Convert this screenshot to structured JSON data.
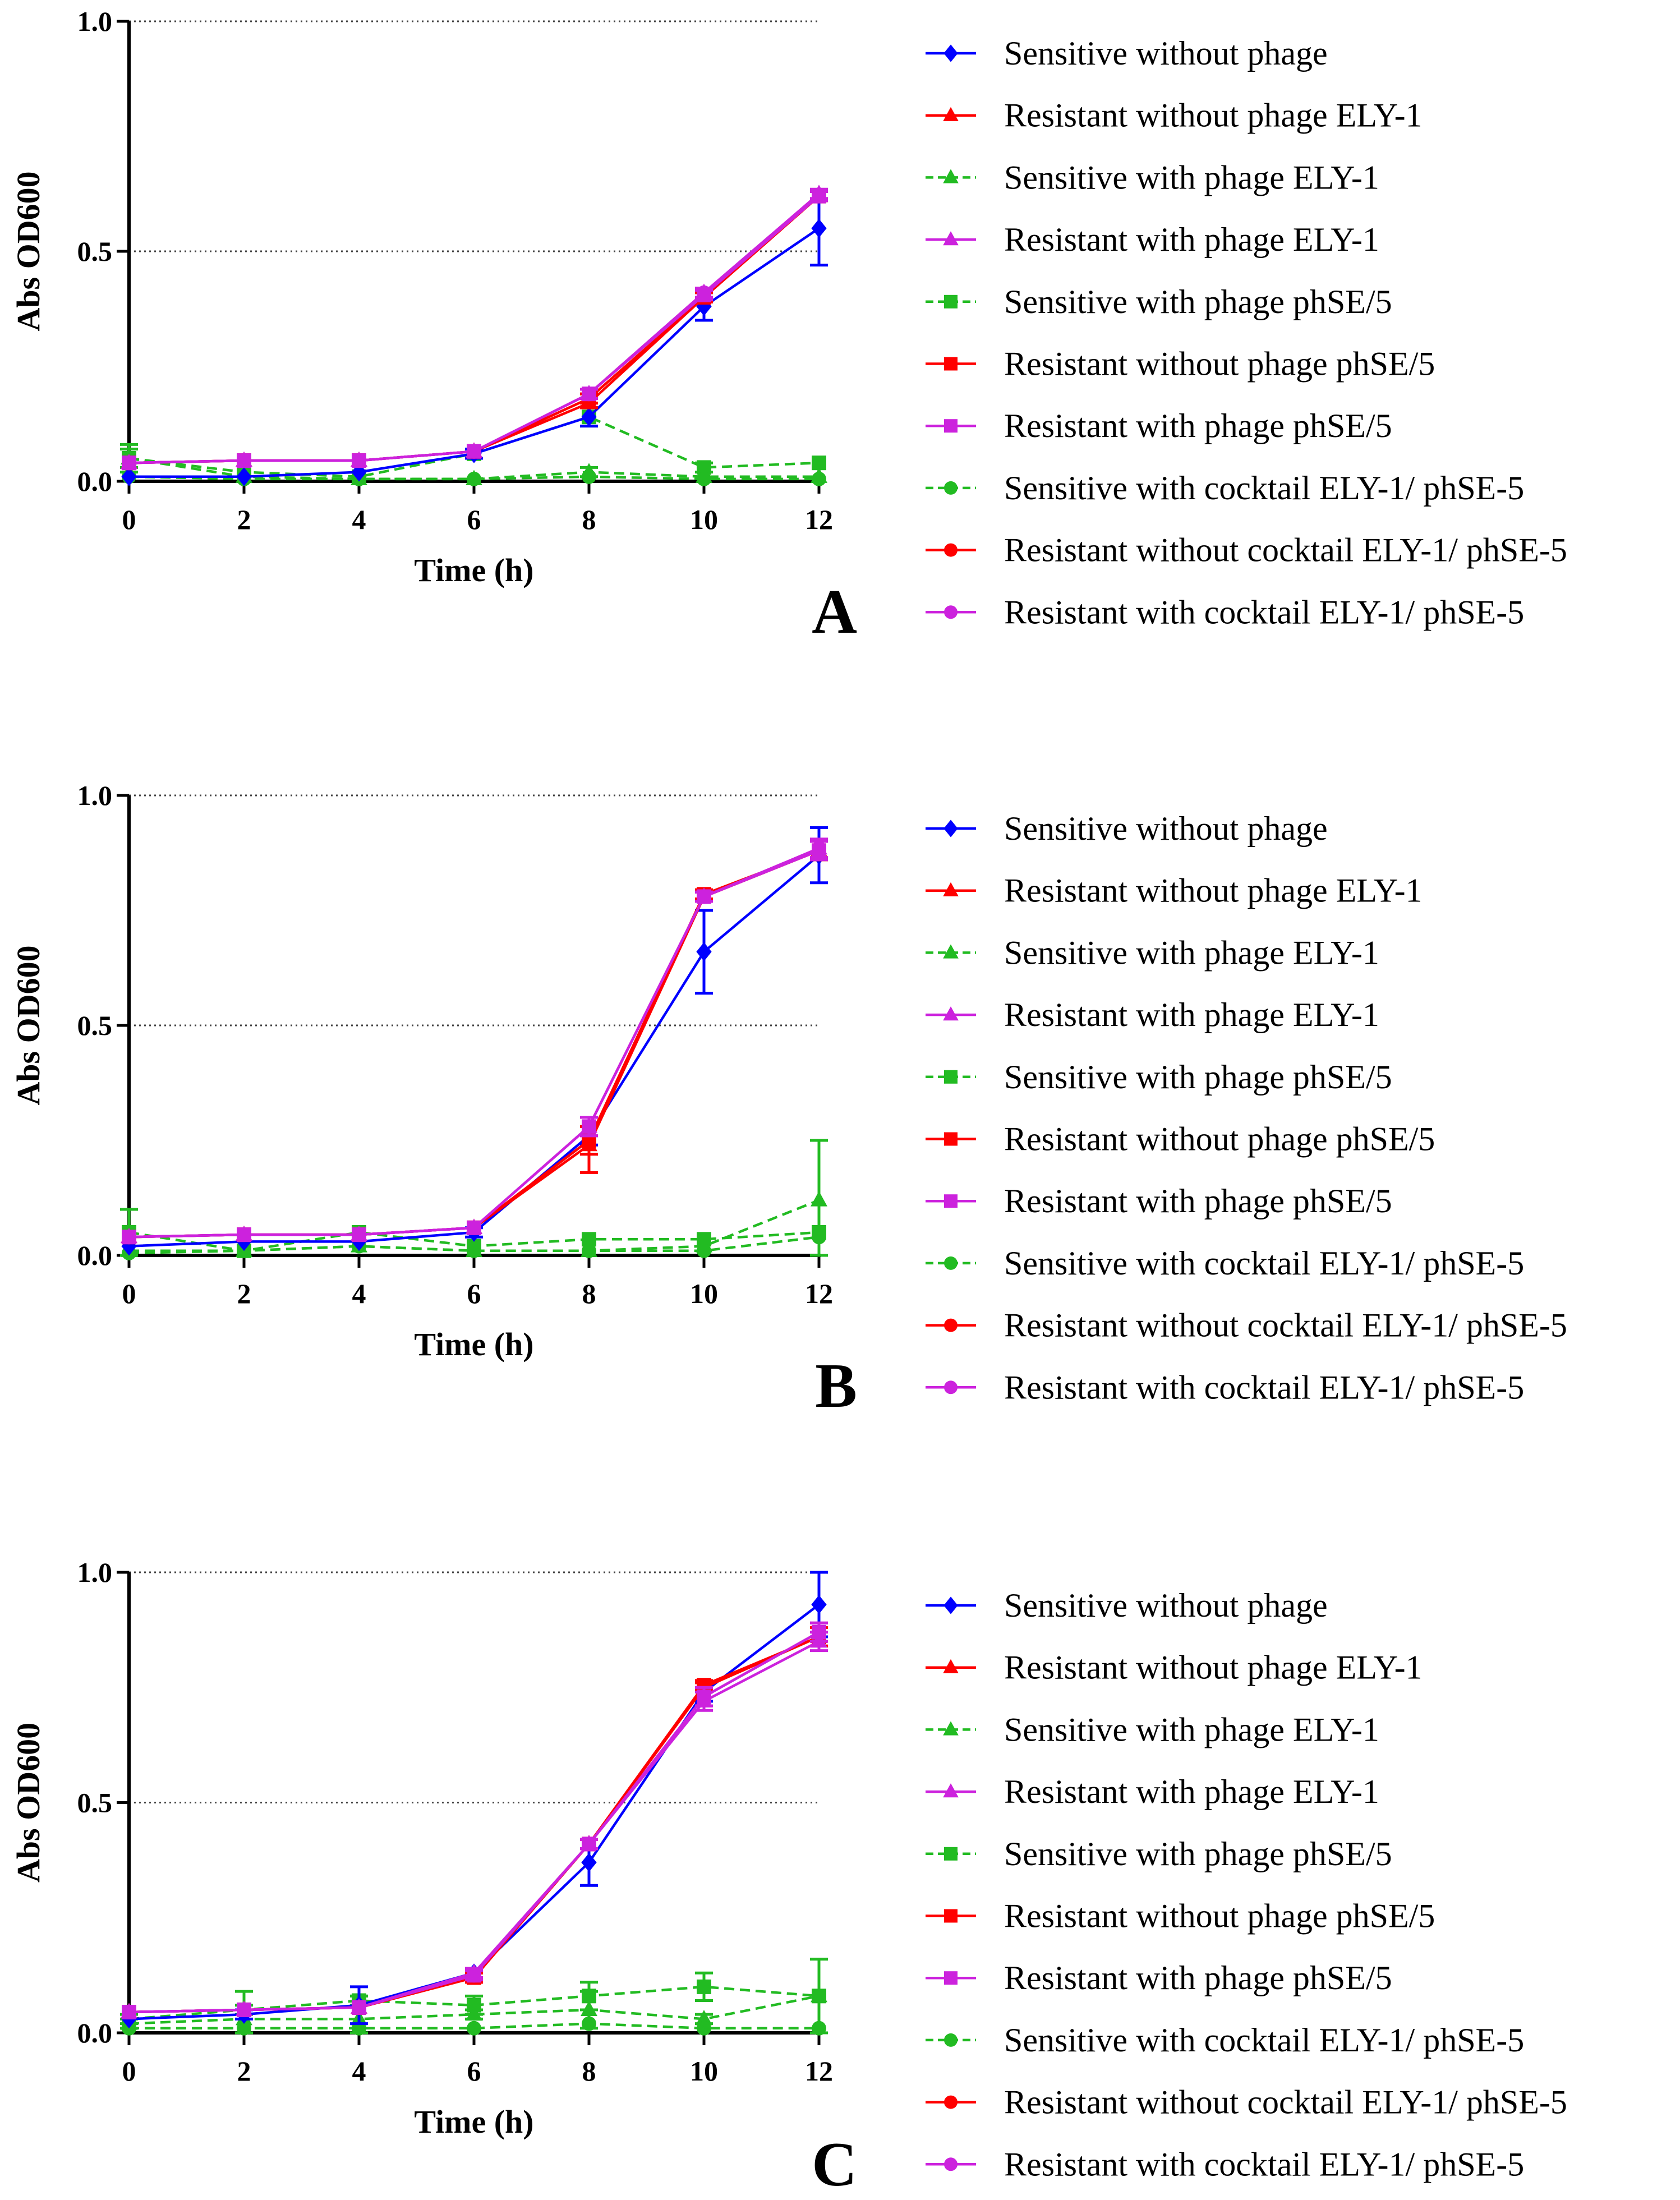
{
  "series_styles": [
    {
      "color": "#0000ff",
      "marker": "diamond",
      "dash": false
    },
    {
      "color": "#ff0000",
      "marker": "triangle",
      "dash": false
    },
    {
      "color": "#22bb22",
      "marker": "triangle",
      "dash": true
    },
    {
      "color": "#cc22dd",
      "marker": "triangle",
      "dash": false
    },
    {
      "color": "#22bb22",
      "marker": "square",
      "dash": true
    },
    {
      "color": "#ff0000",
      "marker": "square",
      "dash": false
    },
    {
      "color": "#cc22dd",
      "marker": "square",
      "dash": false
    },
    {
      "color": "#22bb22",
      "marker": "circle",
      "dash": true
    },
    {
      "color": "#ff0000",
      "marker": "circle",
      "dash": false
    },
    {
      "color": "#cc22dd",
      "marker": "circle",
      "dash": false
    }
  ],
  "chart_data": [
    {
      "type": "line",
      "panel_label": "A",
      "xlabel": "Time (h)",
      "ylabel": "Abs OD600",
      "x": [
        0,
        2,
        4,
        6,
        8,
        10,
        12
      ],
      "x_ticks": [
        "0",
        "2",
        "4",
        "6",
        "8",
        "10",
        "12"
      ],
      "y_ticks": [
        "0.0",
        "0.5",
        "1.0"
      ],
      "xlim": [
        0,
        12
      ],
      "ylim": [
        0,
        1.0
      ],
      "grid": "dotted horizontal",
      "legend_position": "right",
      "series": [
        {
          "name": "Sensitive without phage",
          "values": [
            0.01,
            0.01,
            0.02,
            0.06,
            0.14,
            0.38,
            0.55
          ],
          "error": [
            0.005,
            0.005,
            0.005,
            0.01,
            0.02,
            0.03,
            0.08
          ]
        },
        {
          "name": "Resistant without phage ELY-1",
          "values": [
            0.04,
            0.045,
            0.045,
            0.065,
            0.17,
            0.4,
            0.62
          ],
          "error": [
            0.005,
            0.005,
            0.005,
            0.005,
            0.01,
            0.01,
            0.01
          ]
        },
        {
          "name": "Sensitive with phage ELY-1",
          "values": [
            0.05,
            0.01,
            0.005,
            0.005,
            0.02,
            0.01,
            0.01
          ],
          "error": [
            0.03,
            0.005,
            0.005,
            0.005,
            0.01,
            0.005,
            0.005
          ]
        },
        {
          "name": "Resistant with phage ELY-1",
          "values": [
            0.04,
            0.045,
            0.045,
            0.065,
            0.19,
            0.41,
            0.625
          ],
          "error": [
            0.005,
            0.005,
            0.005,
            0.005,
            0.01,
            0.01,
            0.01
          ]
        },
        {
          "name": "Sensitive with phage phSE/5",
          "values": [
            0.05,
            0.02,
            0.01,
            0.06,
            0.14,
            0.03,
            0.04
          ],
          "error": [
            0.02,
            0.005,
            0.005,
            0.01,
            0.02,
            0.01,
            0.005
          ]
        },
        {
          "name": "Resistant without phage phSE/5",
          "values": [
            0.04,
            0.045,
            0.045,
            0.065,
            0.18,
            0.4,
            0.62
          ],
          "error": [
            0.005,
            0.005,
            0.005,
            0.005,
            0.01,
            0.01,
            0.01
          ]
        },
        {
          "name": "Resistant with phage phSE/5",
          "values": [
            0.04,
            0.045,
            0.045,
            0.065,
            0.19,
            0.405,
            0.62
          ],
          "error": [
            0.005,
            0.005,
            0.005,
            0.005,
            0.01,
            0.01,
            0.01
          ]
        },
        {
          "name": "Sensitive with cocktail ELY-1/ phSE-5",
          "values": [
            0.01,
            0.005,
            0.005,
            0.005,
            0.01,
            0.005,
            0.005
          ],
          "error": [
            0.005,
            0.005,
            0.005,
            0.005,
            0.005,
            0.005,
            0.005
          ]
        },
        {
          "name": "Resistant without cocktail ELY-1/ phSE-5",
          "values": [
            0.04,
            0.045,
            0.045,
            0.065,
            0.18,
            0.4,
            0.62
          ],
          "error": [
            0.005,
            0.005,
            0.005,
            0.005,
            0.01,
            0.01,
            0.01
          ]
        },
        {
          "name": "Resistant with cocktail ELY-1/ phSE-5",
          "values": [
            0.04,
            0.045,
            0.045,
            0.065,
            0.19,
            0.41,
            0.62
          ],
          "error": [
            0.005,
            0.005,
            0.005,
            0.005,
            0.01,
            0.01,
            0.01
          ]
        }
      ]
    },
    {
      "type": "line",
      "panel_label": "B",
      "xlabel": "Time (h)",
      "ylabel": "Abs OD600",
      "x": [
        0,
        2,
        4,
        6,
        8,
        10,
        12
      ],
      "x_ticks": [
        "0",
        "2",
        "4",
        "6",
        "8",
        "10",
        "12"
      ],
      "y_ticks": [
        "0.0",
        "0.5",
        "1.0"
      ],
      "xlim": [
        0,
        12
      ],
      "ylim": [
        0,
        1.0
      ],
      "grid": "dotted horizontal",
      "legend_position": "right",
      "series": [
        {
          "name": "Sensitive without phage",
          "values": [
            0.02,
            0.03,
            0.03,
            0.05,
            0.26,
            0.66,
            0.87
          ],
          "error": [
            0.005,
            0.005,
            0.005,
            0.01,
            0.02,
            0.09,
            0.06
          ]
        },
        {
          "name": "Resistant without phage ELY-1",
          "values": [
            0.04,
            0.045,
            0.045,
            0.06,
            0.24,
            0.78,
            0.88
          ],
          "error": [
            0.005,
            0.005,
            0.005,
            0.005,
            0.06,
            0.01,
            0.02
          ]
        },
        {
          "name": "Sensitive with phage ELY-1",
          "values": [
            0.01,
            0.01,
            0.02,
            0.01,
            0.01,
            0.02,
            0.12
          ],
          "error": [
            0.005,
            0.005,
            0.005,
            0.005,
            0.005,
            0.005,
            0.13
          ]
        },
        {
          "name": "Resistant with phage ELY-1",
          "values": [
            0.04,
            0.045,
            0.045,
            0.06,
            0.28,
            0.78,
            0.885
          ],
          "error": [
            0.005,
            0.005,
            0.005,
            0.005,
            0.02,
            0.01,
            0.02
          ]
        },
        {
          "name": "Sensitive with phage phSE/5",
          "values": [
            0.05,
            0.01,
            0.05,
            0.02,
            0.035,
            0.035,
            0.05
          ],
          "error": [
            0.05,
            0.005,
            0.005,
            0.005,
            0.005,
            0.005,
            0.005
          ]
        },
        {
          "name": "Resistant without phage phSE/5",
          "values": [
            0.04,
            0.045,
            0.045,
            0.06,
            0.25,
            0.785,
            0.88
          ],
          "error": [
            0.005,
            0.005,
            0.005,
            0.005,
            0.03,
            0.01,
            0.02
          ]
        },
        {
          "name": "Resistant with phage phSE/5",
          "values": [
            0.04,
            0.045,
            0.045,
            0.06,
            0.28,
            0.78,
            0.88
          ],
          "error": [
            0.005,
            0.005,
            0.005,
            0.005,
            0.02,
            0.01,
            0.02
          ]
        },
        {
          "name": "Sensitive with cocktail ELY-1/ phSE-5",
          "values": [
            0.005,
            0.01,
            0.02,
            0.01,
            0.01,
            0.01,
            0.04
          ],
          "error": [
            0.005,
            0.005,
            0.005,
            0.005,
            0.005,
            0.005,
            0.005
          ]
        },
        {
          "name": "Resistant without cocktail ELY-1/ phSE-5",
          "values": [
            0.04,
            0.045,
            0.045,
            0.06,
            0.25,
            0.78,
            0.88
          ],
          "error": [
            0.005,
            0.005,
            0.005,
            0.005,
            0.03,
            0.01,
            0.02
          ]
        },
        {
          "name": "Resistant with cocktail ELY-1/ phSE-5",
          "values": [
            0.04,
            0.045,
            0.045,
            0.06,
            0.28,
            0.78,
            0.885
          ],
          "error": [
            0.005,
            0.005,
            0.005,
            0.005,
            0.02,
            0.01,
            0.02
          ]
        }
      ]
    },
    {
      "type": "line",
      "panel_label": "C",
      "xlabel": "Time (h)",
      "ylabel": "Abs OD600",
      "x": [
        0,
        2,
        4,
        6,
        8,
        10,
        12
      ],
      "x_ticks": [
        "0",
        "2",
        "4",
        "6",
        "8",
        "10",
        "12"
      ],
      "y_ticks": [
        "0.0",
        "0.5",
        "1.0"
      ],
      "xlim": [
        0,
        12
      ],
      "ylim": [
        0,
        1.0
      ],
      "grid": "dotted horizontal",
      "legend_position": "right",
      "series": [
        {
          "name": "Sensitive without phage",
          "values": [
            0.03,
            0.04,
            0.06,
            0.13,
            0.37,
            0.74,
            0.93
          ],
          "error": [
            0.005,
            0.01,
            0.04,
            0.01,
            0.05,
            0.02,
            0.07
          ]
        },
        {
          "name": "Resistant without phage ELY-1",
          "values": [
            0.045,
            0.05,
            0.055,
            0.12,
            0.41,
            0.75,
            0.86
          ],
          "error": [
            0.005,
            0.005,
            0.005,
            0.01,
            0.01,
            0.01,
            0.02
          ]
        },
        {
          "name": "Sensitive with phage ELY-1",
          "values": [
            0.02,
            0.03,
            0.03,
            0.04,
            0.05,
            0.03,
            0.08
          ],
          "error": [
            0.01,
            0.06,
            0.05,
            0.01,
            0.04,
            0.01,
            0.08
          ]
        },
        {
          "name": "Resistant with phage ELY-1",
          "values": [
            0.045,
            0.05,
            0.055,
            0.13,
            0.41,
            0.72,
            0.85
          ],
          "error": [
            0.005,
            0.005,
            0.005,
            0.01,
            0.01,
            0.02,
            0.02
          ]
        },
        {
          "name": "Sensitive with phage phSE/5",
          "values": [
            0.03,
            0.05,
            0.07,
            0.06,
            0.08,
            0.1,
            0.08
          ],
          "error": [
            0.01,
            0.01,
            0.01,
            0.02,
            0.03,
            0.03,
            0.08
          ]
        },
        {
          "name": "Resistant without phage phSE/5",
          "values": [
            0.045,
            0.05,
            0.055,
            0.12,
            0.41,
            0.755,
            0.86
          ],
          "error": [
            0.005,
            0.005,
            0.005,
            0.01,
            0.01,
            0.01,
            0.02
          ]
        },
        {
          "name": "Resistant with phage phSE/5",
          "values": [
            0.045,
            0.05,
            0.055,
            0.125,
            0.41,
            0.73,
            0.87
          ],
          "error": [
            0.005,
            0.005,
            0.005,
            0.01,
            0.01,
            0.02,
            0.02
          ]
        },
        {
          "name": "Sensitive with cocktail ELY-1/ phSE-5",
          "values": [
            0.01,
            0.01,
            0.01,
            0.01,
            0.02,
            0.01,
            0.01
          ],
          "error": [
            0.005,
            0.005,
            0.005,
            0.005,
            0.005,
            0.005,
            0.005
          ]
        },
        {
          "name": "Resistant without cocktail ELY-1/ phSE-5",
          "values": [
            0.045,
            0.05,
            0.055,
            0.12,
            0.41,
            0.75,
            0.86
          ],
          "error": [
            0.005,
            0.005,
            0.005,
            0.01,
            0.01,
            0.01,
            0.02
          ]
        },
        {
          "name": "Resistant with cocktail ELY-1/ phSE-5",
          "values": [
            0.045,
            0.05,
            0.055,
            0.125,
            0.41,
            0.73,
            0.87
          ],
          "error": [
            0.005,
            0.005,
            0.005,
            0.01,
            0.01,
            0.02,
            0.02
          ]
        }
      ]
    }
  ]
}
